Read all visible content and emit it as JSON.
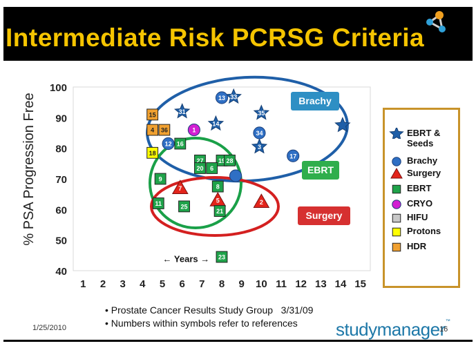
{
  "slide": {
    "title": "Intermediate  Risk  PCRSG Criteria",
    "notes": [
      "• Prostate Cancer Results Study Group   3/31/09",
      "• Numbers within symbols refer to references"
    ],
    "date": "1/25/2010",
    "brand": "studymanager",
    "brand_tm": "™",
    "page": "16",
    "colors": {
      "title": "#f5c400",
      "title_bg": "#000000",
      "legend_border": "#c8932a",
      "brand": "#1e78a8"
    }
  },
  "chart_data": {
    "type": "scatter",
    "ylabel": "% PSA Progression Free",
    "xlabel": "",
    "xlim": [
      0.5,
      15.5
    ],
    "ylim": [
      40,
      100
    ],
    "xticks": [
      1,
      2,
      3,
      4,
      5,
      6,
      7,
      8,
      9,
      10,
      11,
      12,
      13,
      14,
      15
    ],
    "yticks": [
      40,
      50,
      60,
      70,
      80,
      90,
      100
    ],
    "grid": false,
    "legend_position": "right",
    "axis_annotation": {
      "text": "← Years →",
      "x": 6.2,
      "y": 44
    },
    "series": [
      {
        "name": "EBRT &\nSeeds",
        "marker": "star",
        "color": "#1f5fa8",
        "points": [
          {
            "x": 6.0,
            "y": 92,
            "label": "31"
          },
          {
            "x": 7.7,
            "y": 88,
            "label": "14"
          },
          {
            "x": 8.6,
            "y": 96.8,
            "label": "33"
          },
          {
            "x": 10.0,
            "y": 91.5,
            "label": "35"
          },
          {
            "x": 9.9,
            "y": 80.5,
            "label": "3"
          },
          {
            "x": 14.1,
            "y": 87.5,
            "label": ""
          }
        ]
      },
      {
        "name": "Brachy",
        "marker": "circle",
        "color": "#2f6fc4",
        "points": [
          {
            "x": 8.0,
            "y": 96.5,
            "label": "13"
          },
          {
            "x": 9.9,
            "y": 85,
            "label": "34"
          },
          {
            "x": 5.3,
            "y": 81.5,
            "label": "12"
          },
          {
            "x": 11.6,
            "y": 77.5,
            "label": "17"
          },
          {
            "x": 8.7,
            "y": 71,
            "label": ""
          }
        ]
      },
      {
        "name": "Surgery",
        "marker": "triangle",
        "color": "#e3241b",
        "points": [
          {
            "x": 5.9,
            "y": 67,
            "label": "7"
          },
          {
            "x": 7.8,
            "y": 63,
            "label": "5"
          },
          {
            "x": 10.0,
            "y": 62.5,
            "label": "2"
          }
        ]
      },
      {
        "name": "EBRT",
        "marker": "square",
        "color": "#1fa34a",
        "points": [
          {
            "x": 5.9,
            "y": 81.5,
            "label": "16"
          },
          {
            "x": 6.9,
            "y": 76,
            "label": "27"
          },
          {
            "x": 8.0,
            "y": 76,
            "label": "19"
          },
          {
            "x": 8.4,
            "y": 76,
            "label": "28"
          },
          {
            "x": 6.9,
            "y": 73.5,
            "label": "20"
          },
          {
            "x": 7.5,
            "y": 73.5,
            "label": "6"
          },
          {
            "x": 4.9,
            "y": 70,
            "label": "9"
          },
          {
            "x": 7.8,
            "y": 67.5,
            "label": "8"
          },
          {
            "x": 4.8,
            "y": 62,
            "label": "11"
          },
          {
            "x": 6.1,
            "y": 61,
            "label": "25"
          },
          {
            "x": 7.9,
            "y": 59.5,
            "label": "21"
          },
          {
            "x": 8.0,
            "y": 44.5,
            "label": "23"
          }
        ]
      },
      {
        "name": "CRYO",
        "marker": "circle",
        "color": "#d21fd2",
        "points": [
          {
            "x": 6.6,
            "y": 86,
            "label": "1"
          }
        ]
      },
      {
        "name": "HIFU",
        "marker": "square",
        "color": "#c8c8c8",
        "points": []
      },
      {
        "name": "Protons",
        "marker": "square",
        "color": "#ffff00",
        "points": [
          {
            "x": 4.5,
            "y": 78.5,
            "label": "18"
          }
        ]
      },
      {
        "name": "HDR",
        "marker": "square",
        "color": "#f0a030",
        "points": [
          {
            "x": 4.5,
            "y": 91,
            "label": "15"
          },
          {
            "x": 4.5,
            "y": 86,
            "label": "4"
          },
          {
            "x": 5.1,
            "y": 86,
            "label": "36"
          }
        ]
      }
    ],
    "groups": [
      {
        "label": "Brachy",
        "ellipse_color": "#1f5fa8",
        "tag_color": "#2e8fc4"
      },
      {
        "label": "EBRT",
        "ellipse_color": "#1aa048",
        "tag_color": "#2fae4c"
      },
      {
        "label": "Surgery",
        "ellipse_color": "#d42020",
        "tag_color": "#d63030"
      }
    ]
  }
}
